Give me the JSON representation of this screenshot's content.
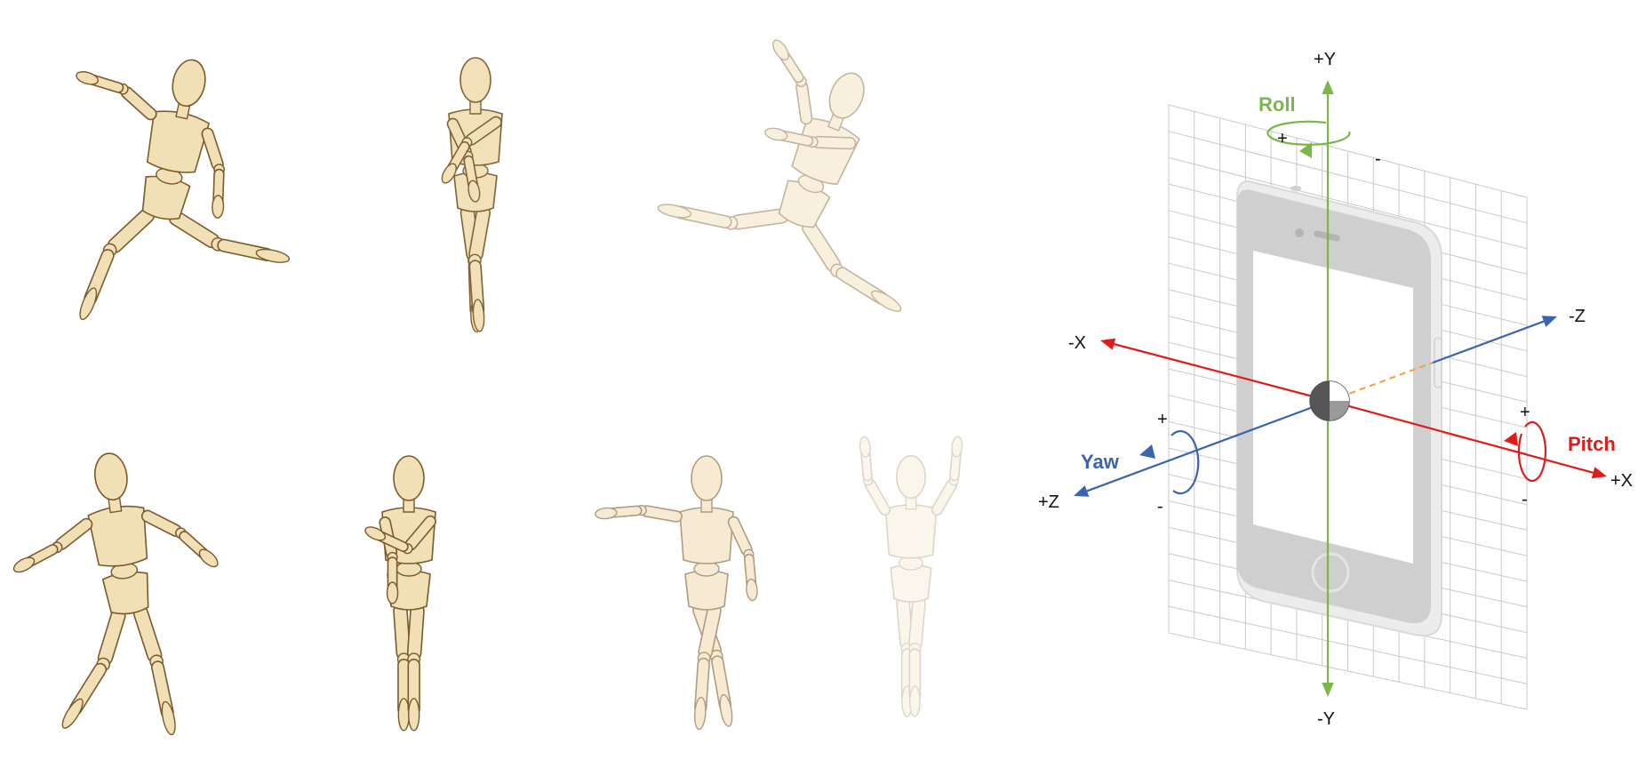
{
  "colors": {
    "x_axis": "#e01b1b",
    "y_axis": "#7ab648",
    "z_axis": "#3a64b0",
    "dashed_z": "#f2a13a",
    "grid": "#c9c9c9",
    "phone_body": "#cfcfcf",
    "phone_rim": "#ececec",
    "screen": "#ffffff",
    "wood_light": "#f1dfb5",
    "wood_dark": "#7a5a2c"
  },
  "mannequins": {
    "count": 7,
    "icon": "wooden-mannequin-icon"
  },
  "diagram": {
    "axes": {
      "pos_y": "+Y",
      "neg_y": "-Y",
      "neg_x": "-X",
      "pos_x": "+X",
      "neg_z": "-Z",
      "pos_z": "+Z"
    },
    "rotations": {
      "roll": {
        "label": "Roll",
        "plus": "+",
        "minus": "-"
      },
      "pitch": {
        "label": "Pitch",
        "plus": "+",
        "minus": "-"
      },
      "yaw": {
        "label": "Yaw",
        "plus": "+",
        "minus": "-"
      }
    }
  }
}
